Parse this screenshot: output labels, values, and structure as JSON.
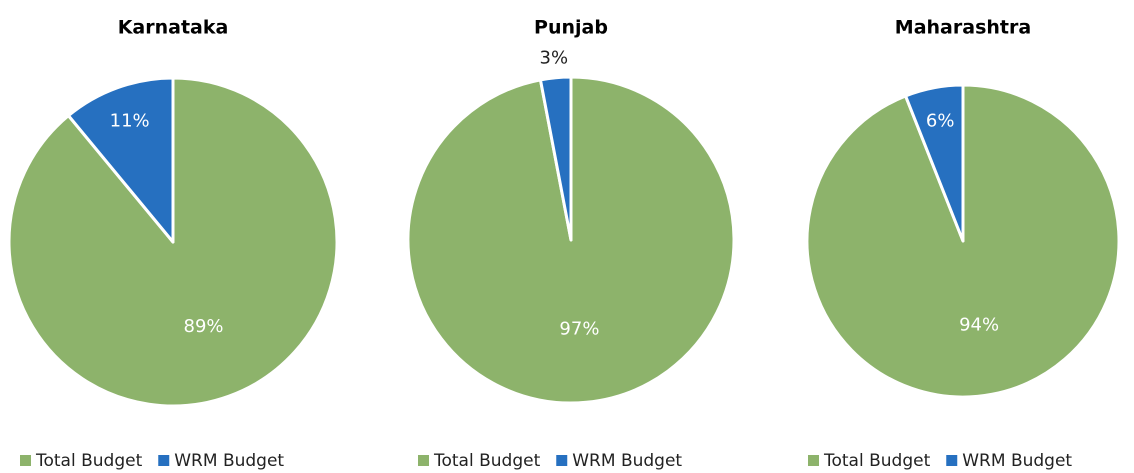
{
  "chart_data": [
    {
      "type": "pie",
      "title": "Karnataka",
      "categories": [
        "Total Budget",
        "WRM Budget"
      ],
      "values": [
        89,
        11
      ],
      "value_labels": [
        "89%",
        "11%"
      ],
      "colors": [
        "#8db36b",
        "#2670c0"
      ],
      "legend": "bottom"
    },
    {
      "type": "pie",
      "title": "Punjab",
      "categories": [
        "Total Budget",
        "WRM Budget"
      ],
      "values": [
        97,
        3
      ],
      "value_labels": [
        "97%",
        "3%"
      ],
      "colors": [
        "#8db36b",
        "#2670c0"
      ],
      "legend": "bottom"
    },
    {
      "type": "pie",
      "title": "Maharashtra",
      "categories": [
        "Total Budget",
        "WRM Budget"
      ],
      "values": [
        94,
        6
      ],
      "value_labels": [
        "94%",
        "6%"
      ],
      "colors": [
        "#8db36b",
        "#2670c0"
      ],
      "legend": "bottom"
    }
  ]
}
